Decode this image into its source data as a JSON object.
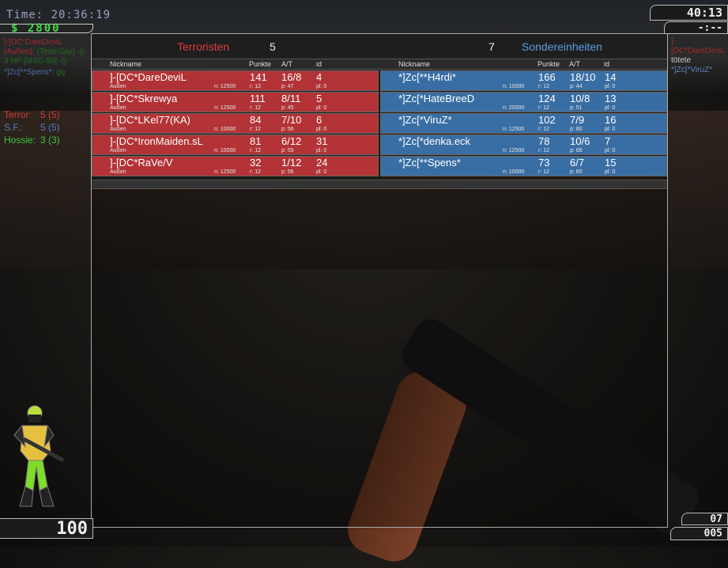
{
  "hud": {
    "time": "Time:  20:36:19",
    "money": "$ 2800",
    "round_timer": "40:13",
    "bomb_timer": "-:--",
    "health": "100",
    "ammo_clip": "07",
    "ammo_reserve": "005"
  },
  "chat": [
    {
      "name": "]-[DC*DareDeviL",
      "loc": "(Außen):",
      "msg": "(TeamSay) -||- 3 HP [MSG 90] -||-"
    },
    {
      "name": "*]Zc[**Spens*:",
      "loc": "",
      "msg": "gg"
    }
  ],
  "killfeed": {
    "killer": "]-[DC*DareDeviL",
    "verb": "tötete",
    "victim": "*]Zc[*ViruZ*"
  },
  "team_stats": [
    {
      "label": "Terror:",
      "value": "5 (5)",
      "color": "#d03a3a"
    },
    {
      "label": "S.F.:",
      "value": "5 (5)",
      "color": "#4f7fc0"
    },
    {
      "label": "Hossie:",
      "value": "3 (3)",
      "color": "#3ec43e"
    }
  ],
  "columns": {
    "nick": "Nickname",
    "points": "Punkte",
    "at": "A/T",
    "id": "id"
  },
  "terrorists": {
    "name": "Terroristen",
    "score": "5",
    "color": "#e03a3a",
    "players": [
      {
        "nick": "]-[DC*DareDeviL",
        "loc": "Außen",
        "n": "n: 12500",
        "points": "141",
        "r": "r: 12",
        "at": "16/8",
        "p": "p: 47",
        "id": "4",
        "pl": "pl: 0"
      },
      {
        "nick": "]-[DC*Skrewya",
        "loc": "Außen",
        "n": "n: 12500",
        "points": "111",
        "r": "r: 12",
        "at": "8/11",
        "p": "p: 45",
        "id": "5",
        "pl": "pl: 0"
      },
      {
        "nick": "]-[DC*LKel77(KA)",
        "loc": "Außen",
        "n": "n: 10000",
        "points": "84",
        "r": "r: 12",
        "at": "7/10",
        "p": "p: 56",
        "id": "6",
        "pl": "pl: 0"
      },
      {
        "nick": "]-[DC*IronMaiden.sL",
        "loc": "Außen",
        "n": "n: 10000",
        "points": "81",
        "r": "r: 12",
        "at": "6/12",
        "p": "p: 55",
        "id": "31",
        "pl": "pl: 0"
      },
      {
        "nick": "]-[DC*RaVe/V",
        "loc": "Außen",
        "n": "n: 12500",
        "points": "32",
        "r": "r: 12",
        "at": "1/12",
        "p": "p: 56",
        "id": "24",
        "pl": "pl: 0"
      }
    ]
  },
  "specialforces": {
    "name": "Sondereinheiten",
    "score": "7",
    "color": "#5a9ee0",
    "players": [
      {
        "nick": "*]Zc[**H4rdi*",
        "loc": "",
        "n": "n: 10000",
        "points": "166",
        "r": "r: 12",
        "at": "18/10",
        "p": "p: 44",
        "id": "14",
        "pl": "pl: 0"
      },
      {
        "nick": "*]Zc[*HateBreeD",
        "loc": "",
        "n": "n: 20000",
        "points": "124",
        "r": "r: 12",
        "at": "10/8",
        "p": "p: 51",
        "id": "13",
        "pl": "pl: 0"
      },
      {
        "nick": "*]Zc[*ViruZ*",
        "loc": "",
        "n": "n: 12500",
        "points": "102",
        "r": "r: 12",
        "at": "7/9",
        "p": "p: 80",
        "id": "16",
        "pl": "pl: 0"
      },
      {
        "nick": "*]Zc[*denka.eck",
        "loc": "",
        "n": "n: 12500",
        "points": "78",
        "r": "r: 12",
        "at": "10/6",
        "p": "p: 68",
        "id": "7",
        "pl": "pl: 0"
      },
      {
        "nick": "*]Zc[**Spens*",
        "loc": "",
        "n": "n: 10000",
        "points": "73",
        "r": "r: 12",
        "at": "6/7",
        "p": "p: 60",
        "id": "15",
        "pl": "pl: 0"
      }
    ]
  }
}
